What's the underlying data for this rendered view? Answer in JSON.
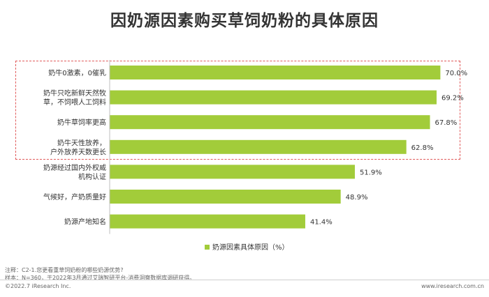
{
  "chart_data": {
    "type": "bar",
    "orientation": "horizontal",
    "title": "因奶源因素购买草饲奶粉的具体原因",
    "categories": [
      [
        "奶牛0激素，0催乳"
      ],
      [
        "奶牛只吃新鲜天然牧",
        "草，不饲喂人工饲料"
      ],
      [
        "奶牛草饲率更高"
      ],
      [
        "奶牛天性放养，",
        "户外放养天数更长"
      ],
      [
        "奶源经过国内外权威",
        "机构认证"
      ],
      [
        "气候好，产奶质量好"
      ],
      [
        "奶源产地知名"
      ]
    ],
    "series": [
      {
        "name": "奶源因素具体原因（%）",
        "values": [
          70.0,
          69.2,
          67.8,
          62.8,
          51.9,
          48.9,
          41.4
        ],
        "labels": [
          "70.0%",
          "69.2%",
          "67.8%",
          "62.8%",
          "51.9%",
          "48.9%",
          "41.4%"
        ]
      }
    ],
    "xlim": [
      0,
      80
    ],
    "colors": {
      "bar": "#a2cc3a",
      "highlight_border": "#e05a5a"
    },
    "highlighted_categories": 4,
    "legend_position": "bottom"
  },
  "footer": {
    "note": "注释：C2-1.您更看重草饲奶粉的哪些奶源优势?",
    "sample": "样本：N=360，于2022年3月通过艾瑞智研平台-消费洞察数据库调研获得。",
    "copyright": "©2022.7 iResearch Inc.",
    "website": "www.iresearch.com.cn"
  }
}
